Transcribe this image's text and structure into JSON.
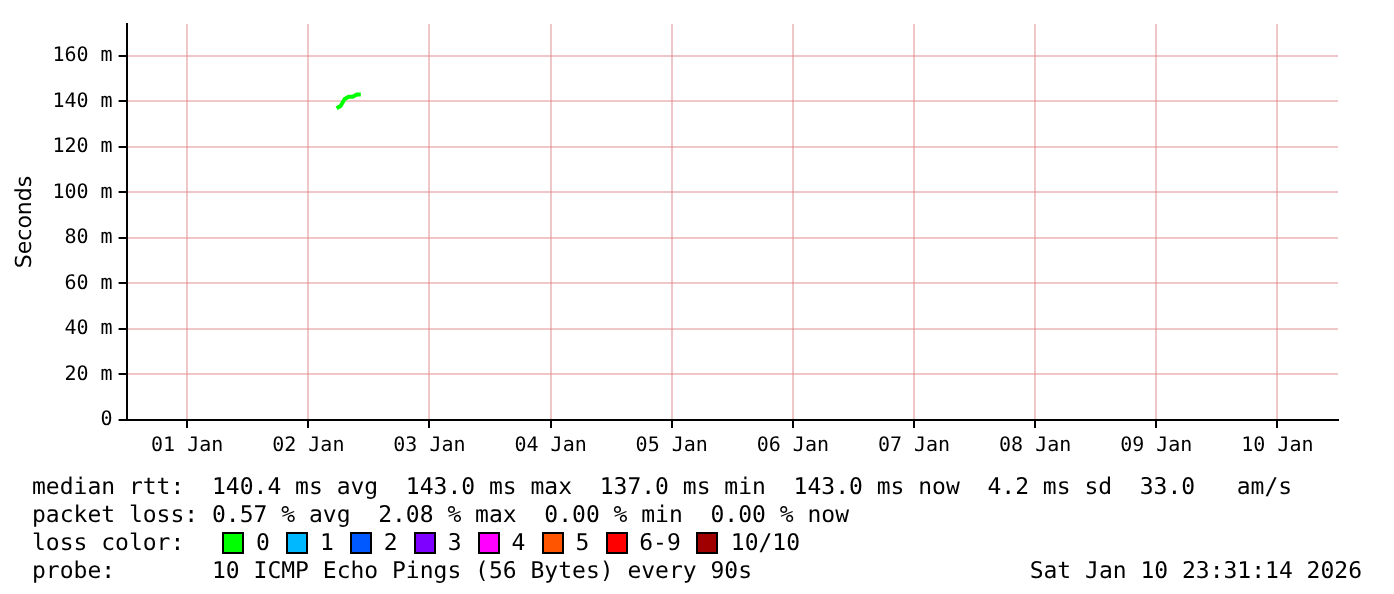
{
  "chart_data": {
    "type": "line",
    "ylabel": "Seconds",
    "x": [
      "2026-01-02T17:36",
      "2026-01-02T18:24",
      "2026-01-02T19:12",
      "2026-01-02T20:00",
      "2026-01-02T20:48",
      "2026-01-02T21:36",
      "2026-01-02T22:24"
    ],
    "xlim": [
      "2026-01-01T00:00",
      "2026-01-11T00:00"
    ],
    "xticks": [
      {
        "value": "2026-01-01T12:00",
        "label": "01 Jan"
      },
      {
        "value": "2026-01-02T12:00",
        "label": "02 Jan"
      },
      {
        "value": "2026-01-03T12:00",
        "label": "03 Jan"
      },
      {
        "value": "2026-01-04T12:00",
        "label": "04 Jan"
      },
      {
        "value": "2026-01-05T12:00",
        "label": "05 Jan"
      },
      {
        "value": "2026-01-06T12:00",
        "label": "06 Jan"
      },
      {
        "value": "2026-01-07T12:00",
        "label": "07 Jan"
      },
      {
        "value": "2026-01-08T12:00",
        "label": "08 Jan"
      },
      {
        "value": "2026-01-09T12:00",
        "label": "09 Jan"
      },
      {
        "value": "2026-01-10T12:00",
        "label": "10 Jan"
      }
    ],
    "ylim": [
      0,
      174
    ],
    "yticks": [
      0,
      {
        "value": 20,
        "label": "20 m"
      },
      {
        "value": 40,
        "label": "40 m"
      },
      {
        "value": 60,
        "label": "60 m"
      },
      {
        "value": 80,
        "label": "80 m"
      },
      {
        "value": 100,
        "label": "100 m"
      },
      {
        "value": 120,
        "label": "120 m"
      },
      {
        "value": 140,
        "label": "140 m"
      },
      {
        "value": 160,
        "label": "160 m"
      }
    ],
    "legend_title": "loss color:",
    "series": [
      {
        "name": "0",
        "color": "#00ff00",
        "values": [
          137,
          138,
          141,
          142,
          142,
          143,
          143
        ]
      },
      {
        "name": "1",
        "color": "#00b8ff",
        "values": [
          null,
          null,
          null,
          null,
          null,
          null,
          null
        ]
      },
      {
        "name": "2",
        "color": "#0059ff",
        "values": [
          null,
          null,
          null,
          null,
          null,
          null,
          null
        ]
      },
      {
        "name": "3",
        "color": "#7e00ff",
        "values": [
          null,
          null,
          null,
          null,
          null,
          null,
          null
        ]
      },
      {
        "name": "4",
        "color": "#ff00ff",
        "values": [
          null,
          null,
          null,
          null,
          null,
          null,
          null
        ]
      },
      {
        "name": "5",
        "color": "#ff5500",
        "values": [
          null,
          null,
          null,
          null,
          null,
          null,
          null
        ]
      },
      {
        "name": "6-9",
        "color": "#ff0000",
        "values": [
          null,
          null,
          null,
          null,
          null,
          null,
          null
        ]
      },
      {
        "name": "10/10",
        "color": "#a10000",
        "values": [
          null,
          null,
          null,
          null,
          null,
          null,
          null
        ]
      }
    ],
    "legend": "bottom left",
    "grid": true,
    "marker": "none",
    "line_style": "solid",
    "annotations": [
      "median rtt:  140.4 ms avg  143.0 ms max  137.0 ms min  143.0 ms now  4.2 ms sd  33.0   am/s",
      "packet loss: 0.57 % avg  2.08 % max  0.00 % min  0.00 % now",
      "probe:       10 ICMP Echo Pings (56 Bytes) every 90s",
      "Sat Jan 10 23:31:14 2026"
    ]
  }
}
